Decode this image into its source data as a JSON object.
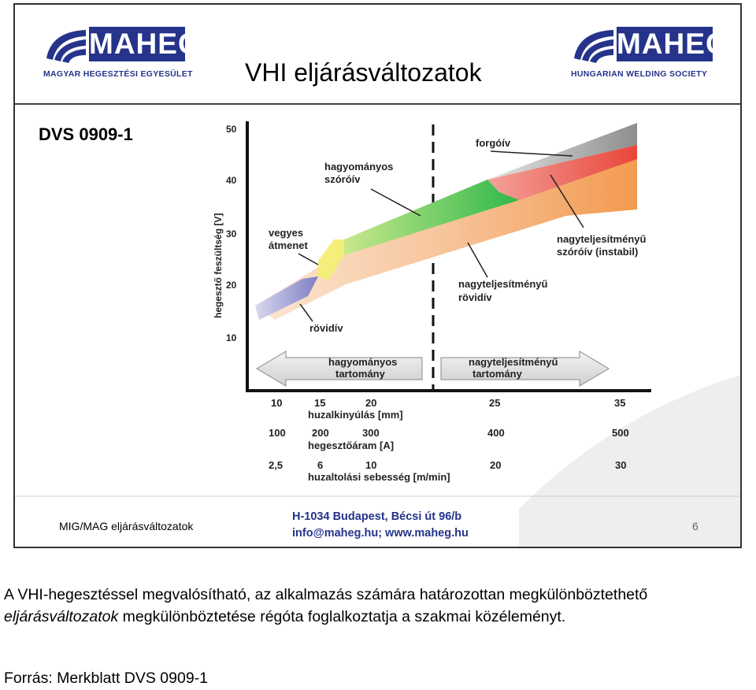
{
  "slide": {
    "title": "VHI eljárásváltozatok",
    "standard": "DVS 0909-1",
    "logo_left": {
      "word": "MAHEG",
      "sub": "MAGYAR HEGESZTÉSI EGYESÜLET"
    },
    "logo_right": {
      "word": "MAHEG",
      "sub": "HUNGARIAN WELDING SOCIETY"
    },
    "footer": {
      "label": "MIG/MAG eljárásváltozatok",
      "address": "H-1034 Budapest, Bécsi út 96/b",
      "contact": "info@maheg.hu; www.maheg.hu",
      "page": "6"
    }
  },
  "diagram": {
    "y_axis_label": "hegesztő feszültség [V]",
    "y_ticks": [
      "50",
      "40",
      "30",
      "20",
      "10"
    ],
    "regions": {
      "rovidiv": "rövidív",
      "vegyes_1": "vegyes",
      "vegyes_2": "átmenet",
      "szoroiv_1": "hagyományos",
      "szoroiv_2": "szóróív",
      "forgoiv": "forgóív",
      "nt_szoroiv_1": "nagyteljesítményű",
      "nt_szoroiv_2": "szóróív (instabil)",
      "nt_rovidiv_1": "nagyteljesítményű",
      "nt_rovidiv_2": "rövidív"
    },
    "arrows": {
      "left_1": "hagyományos",
      "left_2": "tartomány",
      "right_1": "nagyteljesítményű",
      "right_2": "tartomány"
    },
    "scales": [
      {
        "name": "huzalkinyúlás [mm]",
        "ticks": [
          "10",
          "15",
          "20",
          "25",
          "35"
        ]
      },
      {
        "name": "hegesztőáram [A]",
        "ticks": [
          "100",
          "200",
          "300",
          "400",
          "500"
        ]
      },
      {
        "name": "huzaltolási sebesség [m/min]",
        "ticks": [
          "2,5",
          "6",
          "10",
          "20",
          "30"
        ]
      }
    ],
    "colors": {
      "short_arc": "#8f8fd0",
      "mixed": "#f4ef7a",
      "spray": "#46c24a",
      "rotating": "#ee5a48",
      "high_spray": "#9a9a9a",
      "base": "#f6b07a",
      "brand": "#25348a"
    }
  },
  "caption": {
    "line1": "A VHI-hegesztéssel megvalósítható, az alkalmazás számára határozottan megkülönböztethető",
    "line2_italic": "eljárásváltozatok",
    "line2_rest": " megkülönböztetése régóta foglalkoztatja a szakmai közéleményt."
  },
  "source": "Forrás: Merkblatt DVS 0909-1"
}
